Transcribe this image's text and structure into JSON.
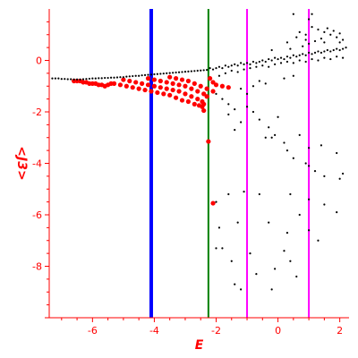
{
  "chart_data": {
    "type": "scatter",
    "xlabel": "E",
    "ylabel": "<J3>",
    "xlim": [
      -7.4,
      2.3
    ],
    "ylim": [
      -10,
      2
    ],
    "x_ticks": [
      "-6",
      "-4",
      "-2",
      "0",
      "2"
    ],
    "y_ticks": [
      "0",
      "-2",
      "-4",
      "-6",
      "-8"
    ],
    "x_tick_values": [
      -6,
      -4,
      -2,
      0,
      2
    ],
    "y_tick_values": [
      0,
      -2,
      -4,
      -6,
      -8
    ],
    "axis_color": "#ff0000",
    "vertical_lines": [
      {
        "x": -4.1,
        "color": "#0000ff"
      },
      {
        "x": -2.25,
        "color": "#008000"
      },
      {
        "x": -1.0,
        "color": "#ff00ff"
      },
      {
        "x": 1.0,
        "color": "#ff00ff"
      }
    ],
    "series": [
      {
        "color": "#ff0000",
        "points": [
          [
            -6.6,
            -0.8
          ],
          [
            -6.5,
            -0.8
          ],
          [
            -6.4,
            -0.8
          ],
          [
            -6.3,
            -0.85
          ],
          [
            -6.2,
            -0.85
          ],
          [
            -6.1,
            -0.9
          ],
          [
            -6.0,
            -0.9
          ],
          [
            -5.9,
            -0.9
          ],
          [
            -5.8,
            -0.95
          ],
          [
            -5.7,
            -0.95
          ],
          [
            -5.6,
            -1.0
          ],
          [
            -5.5,
            -0.95
          ],
          [
            -5.4,
            -0.9
          ],
          [
            -5.3,
            -0.9
          ],
          [
            -5.1,
            -0.95
          ],
          [
            -4.9,
            -1.0
          ],
          [
            -4.7,
            -1.05
          ],
          [
            -4.5,
            -1.1
          ],
          [
            -4.3,
            -1.15
          ],
          [
            -4.1,
            -1.2
          ],
          [
            -3.9,
            -1.25
          ],
          [
            -3.7,
            -1.3
          ],
          [
            -3.5,
            -1.35
          ],
          [
            -3.3,
            -1.45
          ],
          [
            -3.1,
            -1.55
          ],
          [
            -2.9,
            -1.6
          ],
          [
            -2.7,
            -1.7
          ],
          [
            -2.55,
            -1.75
          ],
          [
            -2.45,
            -1.8
          ],
          [
            -5.0,
            -0.75
          ],
          [
            -4.8,
            -0.8
          ],
          [
            -4.6,
            -0.85
          ],
          [
            -4.4,
            -0.9
          ],
          [
            -4.2,
            -0.95
          ],
          [
            -4.0,
            -1.0
          ],
          [
            -3.8,
            -1.05
          ],
          [
            -3.6,
            -1.1
          ],
          [
            -3.4,
            -1.15
          ],
          [
            -3.2,
            -1.2
          ],
          [
            -3.0,
            -1.3
          ],
          [
            -2.8,
            -1.4
          ],
          [
            -2.6,
            -1.5
          ],
          [
            -2.45,
            -1.6
          ],
          [
            -4.2,
            -0.7
          ],
          [
            -4.0,
            -0.75
          ],
          [
            -3.8,
            -0.8
          ],
          [
            -3.6,
            -0.85
          ],
          [
            -3.4,
            -0.9
          ],
          [
            -3.2,
            -0.95
          ],
          [
            -3.0,
            -1.0
          ],
          [
            -2.8,
            -1.1
          ],
          [
            -2.6,
            -1.2
          ],
          [
            -2.4,
            -1.3
          ],
          [
            -2.3,
            -1.4
          ],
          [
            -3.5,
            -0.65
          ],
          [
            -3.3,
            -0.7
          ],
          [
            -3.1,
            -0.75
          ],
          [
            -2.9,
            -0.8
          ],
          [
            -2.7,
            -0.9
          ],
          [
            -2.5,
            -1.0
          ],
          [
            -2.3,
            -1.1
          ],
          [
            -2.1,
            -1.2
          ],
          [
            -2.2,
            -0.7
          ],
          [
            -2.1,
            -0.85
          ],
          [
            -2.0,
            -0.95
          ],
          [
            -1.8,
            -1.0
          ],
          [
            -1.6,
            -1.05
          ],
          [
            -2.4,
            -1.95
          ],
          [
            -2.4,
            -1.7
          ],
          [
            -2.25,
            -3.15
          ],
          [
            -2.1,
            -5.55
          ]
        ]
      },
      {
        "color": "#000000",
        "points": [
          [
            -7.3,
            -0.7
          ],
          [
            -7.2,
            -0.7
          ],
          [
            -7.1,
            -0.7
          ],
          [
            -7.0,
            -0.72
          ],
          [
            -6.9,
            -0.72
          ],
          [
            -6.8,
            -0.73
          ],
          [
            -6.7,
            -0.73
          ],
          [
            -6.6,
            -0.74
          ],
          [
            -6.5,
            -0.74
          ],
          [
            -6.4,
            -0.74
          ],
          [
            -6.3,
            -0.73
          ],
          [
            -6.2,
            -0.72
          ],
          [
            -6.1,
            -0.71
          ],
          [
            -6.0,
            -0.7
          ],
          [
            -5.9,
            -0.7
          ],
          [
            -5.8,
            -0.69
          ],
          [
            -5.7,
            -0.69
          ],
          [
            -5.6,
            -0.68
          ],
          [
            -5.5,
            -0.68
          ],
          [
            -5.4,
            -0.67
          ],
          [
            -5.3,
            -0.67
          ],
          [
            -5.2,
            -0.66
          ],
          [
            -5.1,
            -0.65
          ],
          [
            -5.0,
            -0.65
          ],
          [
            -4.9,
            -0.63
          ],
          [
            -4.8,
            -0.62
          ],
          [
            -4.7,
            -0.61
          ],
          [
            -4.6,
            -0.6
          ],
          [
            -4.5,
            -0.6
          ],
          [
            -4.4,
            -0.58
          ],
          [
            -4.3,
            -0.57
          ],
          [
            -4.2,
            -0.56
          ],
          [
            -4.1,
            -0.55
          ],
          [
            -4.0,
            -0.54
          ],
          [
            -3.9,
            -0.53
          ],
          [
            -3.8,
            -0.52
          ],
          [
            -3.7,
            -0.51
          ],
          [
            -3.6,
            -0.5
          ],
          [
            -3.5,
            -0.49
          ],
          [
            -3.4,
            -0.48
          ],
          [
            -3.3,
            -0.47
          ],
          [
            -3.2,
            -0.46
          ],
          [
            -3.1,
            -0.45
          ],
          [
            -3.0,
            -0.44
          ],
          [
            -2.9,
            -0.43
          ],
          [
            -2.8,
            -0.42
          ],
          [
            -2.7,
            -0.41
          ],
          [
            -2.6,
            -0.4
          ],
          [
            -2.5,
            -0.39
          ],
          [
            -2.4,
            -0.38
          ],
          [
            -2.3,
            -0.37
          ],
          [
            -2.2,
            -0.3
          ],
          [
            -2.1,
            -0.35
          ],
          [
            -2.0,
            -0.3
          ],
          [
            -1.9,
            -0.25
          ],
          [
            -1.8,
            -0.3
          ],
          [
            -1.7,
            -0.2
          ],
          [
            -1.6,
            -0.25
          ],
          [
            -1.5,
            -0.2
          ],
          [
            -1.4,
            -0.15
          ],
          [
            -1.3,
            -0.2
          ],
          [
            -1.2,
            -0.1
          ],
          [
            -1.1,
            -0.15
          ],
          [
            -1.0,
            -0.1
          ],
          [
            -0.9,
            -0.15
          ],
          [
            -0.8,
            -0.05
          ],
          [
            -0.7,
            -0.1
          ],
          [
            -0.6,
            -0.05
          ],
          [
            -0.5,
            0.0
          ],
          [
            -0.4,
            -0.05
          ],
          [
            -0.3,
            0.05
          ],
          [
            -0.2,
            0.0
          ],
          [
            -0.1,
            0.1
          ],
          [
            0.0,
            0.05
          ],
          [
            0.1,
            0.1
          ],
          [
            0.2,
            0.05
          ],
          [
            0.3,
            0.15
          ],
          [
            0.4,
            0.1
          ],
          [
            0.5,
            0.2
          ],
          [
            0.6,
            0.15
          ],
          [
            0.7,
            0.2
          ],
          [
            0.8,
            0.25
          ],
          [
            0.9,
            0.2
          ],
          [
            1.0,
            0.3
          ],
          [
            1.1,
            0.25
          ],
          [
            1.2,
            0.3
          ],
          [
            1.3,
            0.35
          ],
          [
            1.4,
            0.3
          ],
          [
            1.5,
            0.35
          ],
          [
            1.6,
            0.4
          ],
          [
            1.7,
            0.35
          ],
          [
            1.8,
            0.4
          ],
          [
            1.9,
            0.45
          ],
          [
            2.0,
            0.4
          ],
          [
            2.1,
            0.45
          ],
          [
            2.2,
            0.5
          ],
          [
            -1.9,
            -0.6
          ],
          [
            -1.7,
            -0.5
          ],
          [
            -1.5,
            -0.4
          ],
          [
            -1.3,
            -0.45
          ],
          [
            -1.1,
            -0.35
          ],
          [
            -0.9,
            -0.3
          ],
          [
            -0.7,
            -0.25
          ],
          [
            -0.5,
            -0.2
          ],
          [
            -0.3,
            -0.25
          ],
          [
            -0.1,
            -0.15
          ],
          [
            0.1,
            -0.1
          ],
          [
            0.3,
            -0.05
          ],
          [
            0.5,
            -0.1
          ],
          [
            0.7,
            0.0
          ],
          [
            0.9,
            -0.05
          ],
          [
            1.1,
            0.05
          ],
          [
            1.3,
            0.0
          ],
          [
            1.5,
            0.1
          ],
          [
            1.7,
            0.05
          ],
          [
            1.9,
            0.15
          ],
          [
            2.1,
            0.1
          ],
          [
            -0.2,
            0.4
          ],
          [
            0.3,
            0.7
          ],
          [
            0.6,
            0.9
          ],
          [
            0.9,
            1.0
          ],
          [
            1.1,
            1.3
          ],
          [
            1.3,
            1.2
          ],
          [
            1.5,
            1.1
          ],
          [
            1.7,
            1.0
          ],
          [
            1.9,
            0.9
          ],
          [
            2.1,
            0.8
          ],
          [
            1.6,
            1.25
          ],
          [
            1.8,
            1.15
          ],
          [
            2.0,
            1.05
          ],
          [
            1.4,
            0.85
          ],
          [
            1.2,
            0.75
          ],
          [
            1.0,
            0.65
          ],
          [
            0.8,
            0.55
          ],
          [
            0.4,
            0.45
          ],
          [
            0.7,
            1.1
          ],
          [
            1.0,
            1.6
          ],
          [
            1.1,
            1.8
          ],
          [
            0.5,
            1.8
          ],
          [
            0.9,
            0.8
          ],
          [
            1.5,
            0.7
          ],
          [
            2.0,
            0.7
          ],
          [
            -2.0,
            -1.3
          ],
          [
            -1.8,
            -1.5
          ],
          [
            -1.6,
            -1.7
          ],
          [
            -1.4,
            -1.9
          ],
          [
            -1.2,
            -1.1
          ],
          [
            -1.0,
            -1.3
          ],
          [
            -0.8,
            -1.0
          ],
          [
            -0.6,
            -0.8
          ],
          [
            -0.4,
            -0.9
          ],
          [
            0.2,
            -0.7
          ],
          [
            0.5,
            -0.6
          ],
          [
            -1.6,
            -2.1
          ],
          [
            -1.4,
            -2.7
          ],
          [
            -1.2,
            -2.4
          ],
          [
            -1.0,
            -1.8
          ],
          [
            -0.8,
            -2.0
          ],
          [
            -0.6,
            -2.3
          ],
          [
            -0.3,
            -2.6
          ],
          [
            0.0,
            -2.2
          ],
          [
            -0.1,
            -2.9
          ],
          [
            -0.4,
            -3.0
          ],
          [
            -0.2,
            -3.0
          ],
          [
            0.2,
            -3.2
          ],
          [
            0.5,
            -3.8
          ],
          [
            0.9,
            -4.0
          ],
          [
            1.0,
            -4.1
          ],
          [
            1.2,
            -4.3
          ],
          [
            1.5,
            -4.5
          ],
          [
            2.0,
            -4.6
          ],
          [
            2.1,
            -4.4
          ],
          [
            1.9,
            -3.6
          ],
          [
            1.4,
            -3.3
          ],
          [
            1.0,
            -3.4
          ],
          [
            0.7,
            -2.9
          ],
          [
            0.3,
            -3.5
          ],
          [
            -1.6,
            -5.2
          ],
          [
            -1.1,
            -5.1
          ],
          [
            -2.0,
            -5.5
          ],
          [
            0.4,
            -5.2
          ],
          [
            0.7,
            -6.0
          ],
          [
            1.0,
            -5.4
          ],
          [
            1.5,
            -5.6
          ],
          [
            1.9,
            -5.9
          ],
          [
            -0.6,
            -5.2
          ],
          [
            -1.3,
            -6.3
          ],
          [
            -0.3,
            -6.3
          ],
          [
            0.3,
            -6.7
          ],
          [
            -1.9,
            -6.5
          ],
          [
            -1.5,
            -7.8
          ],
          [
            -0.1,
            -8.1
          ],
          [
            0.4,
            -7.8
          ],
          [
            -1.4,
            -8.7
          ],
          [
            -0.7,
            -8.3
          ],
          [
            -0.2,
            -8.9
          ],
          [
            -1.2,
            -8.9
          ],
          [
            -1.8,
            -7.3
          ],
          [
            -2.0,
            -7.3
          ],
          [
            -0.9,
            -7.5
          ],
          [
            0.2,
            -7.4
          ],
          [
            1.0,
            -6.6
          ],
          [
            1.3,
            -7.0
          ],
          [
            0.6,
            -8.4
          ]
        ]
      }
    ]
  }
}
